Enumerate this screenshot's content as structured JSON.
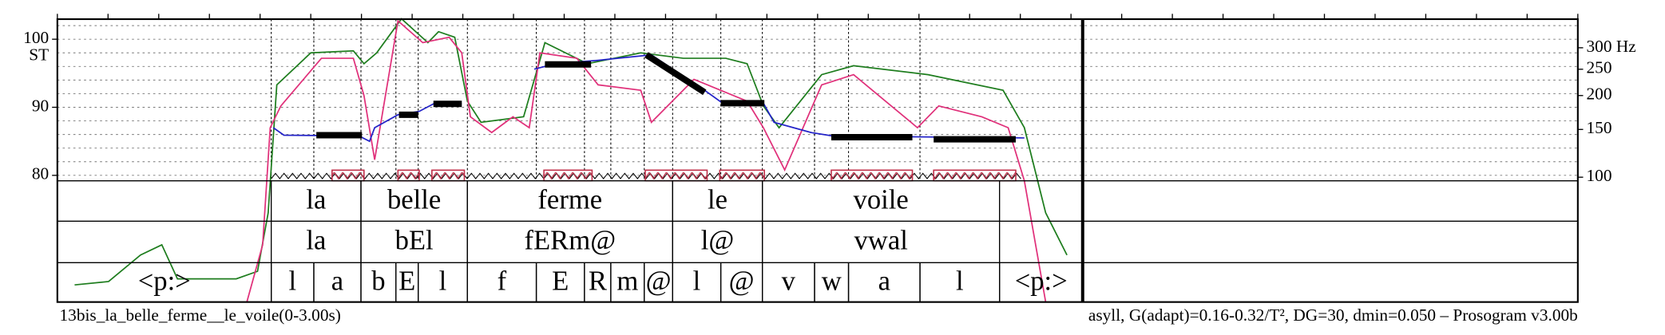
{
  "chart_data": {
    "type": "prosogram",
    "y_label": "ST",
    "footer_left": "13bis_la_belle_ferme__le_voile(0-3.00s)",
    "footer_right": "asyll, G(adapt)=0.16-0.32/T², DG=30, dmin=0.050 – Prosogram v3.00b",
    "xlim": [
      0,
      3
    ],
    "xticks": [
      0,
      0.1,
      0.2,
      0.3,
      0.4,
      0.5,
      0.6,
      0.7,
      0.8,
      0.9,
      1,
      1.1,
      1.2,
      1.3,
      1.4,
      1.5,
      1.6,
      1.7,
      1.8,
      1.9,
      2,
      2.1,
      2.2,
      2.3,
      2.4,
      2.5,
      2.6,
      2.7,
      2.8,
      2.9,
      3
    ],
    "ylim": [
      79.2,
      102.95
    ],
    "yticks": [
      80,
      90,
      100
    ],
    "yticks_minor": [
      82,
      84,
      86,
      88,
      92,
      94,
      96,
      98,
      102
    ],
    "y2_scale": "log",
    "y2ticks": [
      {
        "value": 300,
        "label": "300 Hz"
      },
      250,
      200,
      150,
      100
    ],
    "grid": true,
    "signal_end": 2.023,
    "series": [
      {
        "name": "intensity",
        "color": "#1e7d1e",
        "x": [
          0.034,
          0.101,
          0.164,
          0.206,
          0.237,
          0.353,
          0.395,
          0.416,
          0.433,
          0.5,
          0.584,
          0.605,
          0.63,
          0.679,
          0.731,
          0.752,
          0.784,
          0.809,
          0.836,
          0.92,
          0.962,
          1.046,
          1.151,
          1.235,
          1.319,
          1.361,
          1.393,
          1.424,
          1.508,
          1.571,
          1.718,
          1.866,
          1.908,
          1.95,
          1.992
        ],
        "values": [
          63.9,
          64.4,
          68.3,
          69.8,
          64.8,
          64.8,
          65.9,
          74.5,
          93.3,
          98.0,
          98.3,
          96.4,
          98.0,
          103.0,
          99.5,
          101.1,
          100.3,
          90.9,
          87.8,
          88.6,
          99.5,
          96.4,
          98.0,
          97.2,
          97.2,
          96.4,
          90.2,
          87.0,
          94.8,
          96.1,
          94.8,
          92.5,
          87.0,
          74.5,
          68.3
        ]
      },
      {
        "name": "intensity-band",
        "color": "#e0307a",
        "x": [
          0.374,
          0.405,
          0.42,
          0.441,
          0.521,
          0.584,
          0.605,
          0.626,
          0.672,
          0.721,
          0.773,
          0.798,
          0.815,
          0.857,
          0.899,
          0.931,
          0.952,
          1.025,
          1.067,
          1.151,
          1.172,
          1.256,
          1.361,
          1.393,
          1.435,
          1.508,
          1.571,
          1.697,
          1.739,
          1.824,
          1.876,
          1.908,
          1.95
        ],
        "values": [
          61.4,
          69.8,
          87.0,
          90.2,
          97.2,
          97.2,
          91.7,
          82.3,
          102.7,
          99.5,
          100.3,
          98.0,
          88.6,
          86.3,
          88.6,
          87.0,
          98.0,
          97.2,
          93.3,
          92.5,
          87.8,
          94.1,
          90.9,
          87.0,
          80.8,
          93.3,
          94.8,
          87.0,
          90.2,
          88.6,
          87.0,
          79.2,
          61.4
        ]
      },
      {
        "name": "f0",
        "color": "#2323c8",
        "x": [
          0.426,
          0.447,
          0.595,
          0.616,
          0.626,
          0.672,
          0.714,
          0.742,
          0.798,
          null,
          0.941,
          0.983,
          1.067,
          1.172,
          1.277,
          1.309,
          1.393,
          1.414,
          1.487,
          1.529,
          1.908
        ],
        "values": [
          87.0,
          85.9,
          85.8,
          85.0,
          87.0,
          88.9,
          89.4,
          90.5,
          90.5,
          null,
          95.6,
          96.4,
          96.9,
          97.7,
          92.5,
          90.8,
          90.6,
          87.8,
          86.3,
          85.8,
          85.5
        ]
      }
    ],
    "stylization": [
      {
        "start": 0.511,
        "end": 0.601,
        "from": 85.9,
        "to": 85.9
      },
      {
        "start": 0.674,
        "end": 0.712,
        "from": 88.9,
        "to": 88.9
      },
      {
        "start": 0.742,
        "end": 0.798,
        "from": 90.5,
        "to": 90.5
      },
      {
        "start": 0.962,
        "end": 1.053,
        "from": 96.3,
        "to": 96.3
      },
      {
        "start": 1.162,
        "end": 1.277,
        "from": 97.7,
        "to": 92.2
      },
      {
        "start": 1.309,
        "end": 1.395,
        "from": 90.6,
        "to": 90.6
      },
      {
        "start": 1.527,
        "end": 1.687,
        "from": 85.6,
        "to": 85.6
      },
      {
        "start": 1.729,
        "end": 1.891,
        "from": 85.3,
        "to": 85.3
      }
    ],
    "nuclei": [
      {
        "start": 0.542,
        "end": 0.605
      },
      {
        "start": 0.672,
        "end": 0.714
      },
      {
        "start": 0.739,
        "end": 0.803
      },
      {
        "start": 0.96,
        "end": 1.055
      },
      {
        "start": 1.16,
        "end": 1.282
      },
      {
        "start": 1.307,
        "end": 1.395
      },
      {
        "start": 1.527,
        "end": 1.687
      },
      {
        "start": 1.729,
        "end": 1.891
      }
    ],
    "tiers": [
      [
        {
          "start": 0.422,
          "end": 0.599,
          "label": "la"
        },
        {
          "start": 0.599,
          "end": 0.809,
          "label": "belle"
        },
        {
          "start": 0.809,
          "end": 1.214,
          "label": "ferme"
        },
        {
          "start": 1.214,
          "end": 1.391,
          "label": "le"
        },
        {
          "start": 1.391,
          "end": 1.859,
          "label": "voile"
        }
      ],
      [
        {
          "start": 0.422,
          "end": 0.599,
          "label": "la"
        },
        {
          "start": 0.599,
          "end": 0.809,
          "label": "bEl"
        },
        {
          "start": 0.809,
          "end": 1.214,
          "label": "fERm@"
        },
        {
          "start": 1.214,
          "end": 1.391,
          "label": "l@"
        },
        {
          "start": 1.391,
          "end": 1.859,
          "label": "vwal"
        }
      ],
      [
        {
          "start": 0,
          "end": 0.422,
          "label": "<p:>"
        },
        {
          "start": 0.422,
          "end": 0.506,
          "label": "l"
        },
        {
          "start": 0.506,
          "end": 0.599,
          "label": "a"
        },
        {
          "start": 0.599,
          "end": 0.668,
          "label": "b"
        },
        {
          "start": 0.668,
          "end": 0.712,
          "label": "E"
        },
        {
          "start": 0.712,
          "end": 0.809,
          "label": "l"
        },
        {
          "start": 0.809,
          "end": 0.945,
          "label": "f"
        },
        {
          "start": 0.945,
          "end": 1.04,
          "label": "E"
        },
        {
          "start": 1.04,
          "end": 1.092,
          "label": "R"
        },
        {
          "start": 1.092,
          "end": 1.158,
          "label": "m"
        },
        {
          "start": 1.158,
          "end": 1.214,
          "label": "@"
        },
        {
          "start": 1.214,
          "end": 1.309,
          "label": "l"
        },
        {
          "start": 1.309,
          "end": 1.391,
          "label": "@"
        },
        {
          "start": 1.391,
          "end": 1.494,
          "label": "v"
        },
        {
          "start": 1.494,
          "end": 1.561,
          "label": "w"
        },
        {
          "start": 1.561,
          "end": 1.702,
          "label": "a"
        },
        {
          "start": 1.702,
          "end": 1.859,
          "label": "l"
        },
        {
          "start": 1.859,
          "end": 2.023,
          "label": "<p:>"
        }
      ]
    ]
  }
}
